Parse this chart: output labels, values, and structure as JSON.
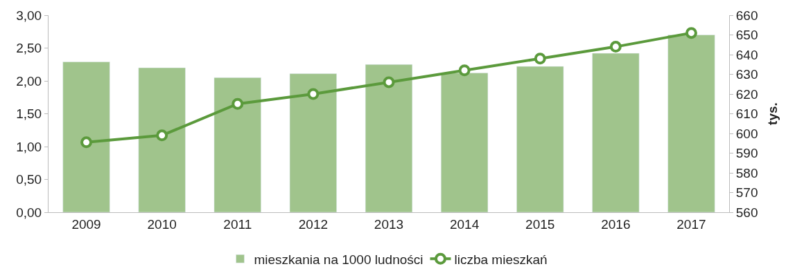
{
  "chart_data": {
    "type": "bar",
    "categories": [
      "2009",
      "2010",
      "2011",
      "2012",
      "2013",
      "2014",
      "2015",
      "2016",
      "2017"
    ],
    "series": [
      {
        "name": "mieszkania na 1000 ludności",
        "color": "#a0c48c",
        "values": [
          2.29,
          2.2,
          2.05,
          2.11,
          2.25,
          2.12,
          2.22,
          2.42,
          2.7
        ]
      },
      {
        "name": "liczba mieszkań",
        "type": "line",
        "axis": "y2",
        "color": "#5b9a3c",
        "marker": "circle",
        "values": [
          595.5,
          599,
          615,
          620,
          626,
          632,
          638,
          644,
          651
        ]
      }
    ],
    "ylim": [
      0,
      3
    ],
    "yticks": [
      {
        "value": 0,
        "label": "0,00"
      },
      {
        "value": 0.5,
        "label": "0,50"
      },
      {
        "value": 1,
        "label": "1,00"
      },
      {
        "value": 1.5,
        "label": "1,50"
      },
      {
        "value": 2,
        "label": "2,00"
      },
      {
        "value": 2.5,
        "label": "2,50"
      },
      {
        "value": 3,
        "label": "3,00"
      }
    ],
    "y2lim": [
      560,
      660
    ],
    "y2ticks": [
      560,
      570,
      580,
      590,
      600,
      610,
      620,
      630,
      640,
      650,
      660
    ],
    "y2label": "tys.",
    "legend": "bottom"
  }
}
